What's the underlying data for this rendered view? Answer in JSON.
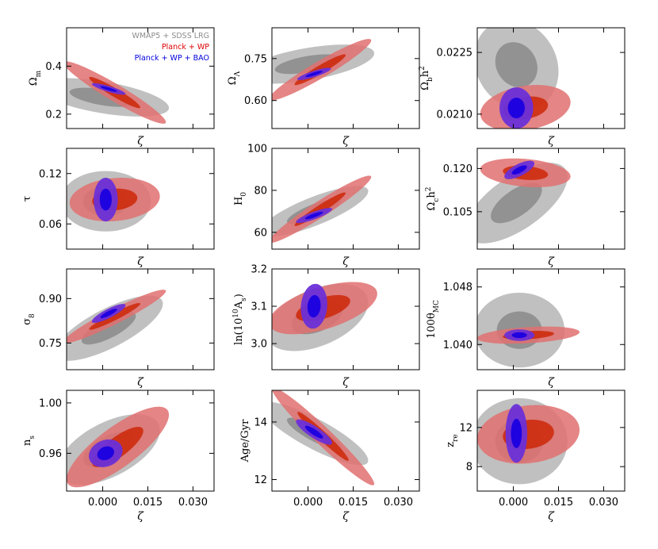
{
  "colors": {
    "wmap_outer": "#bdbdbd",
    "wmap_inner": "#8f8f8f",
    "planck_outer": "#e07070",
    "planck_inner": "#cc2200",
    "bao_outer": "#6a30d8",
    "bao_inner": "#1a00e0",
    "legend_wmap": "#8c8c8c",
    "legend_planck": "#dd0000",
    "legend_bao": "#0000dd"
  },
  "chart_data": {
    "type": "contour-grid",
    "legend": [
      {
        "label": "WMAP5 + SDSS LRG",
        "color": "#8c8c8c"
      },
      {
        "label": "Planck + WP",
        "color": "#dd0000"
      },
      {
        "label": "Planck + WP + BAO",
        "color": "#0000dd"
      }
    ],
    "legend_position": "top-right of first panel",
    "xlabel": "ζ",
    "xlim": [
      -0.012,
      0.037
    ],
    "xticks": [
      "0.000",
      "0.015",
      "0.030"
    ],
    "panels": [
      {
        "name": "omega-m",
        "ylabel_main": "Ω",
        "ylabel_sub": "m",
        "ylim": [
          0.14,
          0.56
        ],
        "yticks": [
          {
            "v": 0.2,
            "label": "0.2"
          },
          {
            "v": 0.4,
            "label": "0.4"
          }
        ],
        "show_xticks": false,
        "contours": {
          "wmap": {
            "cx": 0.0,
            "cy": 0.27,
            "sx": 0.011,
            "sy": 0.04,
            "r": -0.55
          },
          "planck": {
            "cx": 0.004,
            "cy": 0.29,
            "sx": 0.0085,
            "sy": 0.065,
            "r": -0.95
          },
          "bao": {
            "cx": 0.002,
            "cy": 0.305,
            "sx": 0.0028,
            "sy": 0.012,
            "r": -0.85
          }
        }
      },
      {
        "name": "omega-lambda",
        "ylabel_main": "Ω",
        "ylabel_sub": "Λ",
        "ylim": [
          0.5,
          0.86
        ],
        "yticks": [
          {
            "v": 0.6,
            "label": "0.60"
          },
          {
            "v": 0.75,
            "label": "0.75"
          }
        ],
        "show_xticks": false,
        "contours": {
          "wmap": {
            "cx": 0.0,
            "cy": 0.73,
            "sx": 0.011,
            "sy": 0.035,
            "r": 0.55
          },
          "planck": {
            "cx": 0.004,
            "cy": 0.71,
            "sx": 0.0085,
            "sy": 0.055,
            "r": 0.95
          },
          "bao": {
            "cx": 0.002,
            "cy": 0.695,
            "sx": 0.0028,
            "sy": 0.011,
            "r": 0.85
          }
        }
      },
      {
        "name": "omega-b-h2",
        "ylabel_main": "Ω",
        "ylabel_sub": "b",
        "ylabel_suffix": "h",
        "ylabel_sup": "2",
        "ylim": [
          0.02065,
          0.0231
        ],
        "yticks": [
          {
            "v": 0.021,
            "label": "0.0210"
          },
          {
            "v": 0.0225,
            "label": "0.0225"
          }
        ],
        "show_xticks": false,
        "contours": {
          "wmap": {
            "cx": 0.001,
            "cy": 0.0222,
            "sx": 0.007,
            "sy": 0.00055,
            "r": -0.15
          },
          "planck": {
            "cx": 0.004,
            "cy": 0.02115,
            "sx": 0.0075,
            "sy": 0.00028,
            "r": 0.25
          },
          "bao": {
            "cx": 0.001,
            "cy": 0.02115,
            "sx": 0.0028,
            "sy": 0.00025,
            "r": 0.0
          }
        }
      },
      {
        "name": "tau",
        "ylabel_main": "τ",
        "ylim": [
          0.03,
          0.15
        ],
        "yticks": [
          {
            "v": 0.06,
            "label": "0.06"
          },
          {
            "v": 0.12,
            "label": "0.12"
          }
        ],
        "show_xticks": false,
        "contours": {
          "wmap": {
            "cx": 0.001,
            "cy": 0.087,
            "sx": 0.0075,
            "sy": 0.018,
            "r": 0.0
          },
          "planck": {
            "cx": 0.004,
            "cy": 0.089,
            "sx": 0.0075,
            "sy": 0.013,
            "r": 0.15
          },
          "bao": {
            "cx": 0.001,
            "cy": 0.089,
            "sx": 0.002,
            "sy": 0.013,
            "r": 0.0
          }
        }
      },
      {
        "name": "h0",
        "ylabel_main": "H",
        "ylabel_sub": "0",
        "ylim": [
          52,
          100
        ],
        "yticks": [
          {
            "v": 60,
            "label": "60"
          },
          {
            "v": 80,
            "label": "80"
          },
          {
            "v": 100,
            "label": "100"
          }
        ],
        "show_xticks": false,
        "contours": {
          "wmap": {
            "cx": 0.002,
            "cy": 70,
            "sx": 0.009,
            "sy": 6,
            "r": 0.8
          },
          "planck": {
            "cx": 0.004,
            "cy": 71,
            "sx": 0.0085,
            "sy": 8,
            "r": 0.96
          },
          "bao": {
            "cx": 0.002,
            "cy": 68,
            "sx": 0.003,
            "sy": 1.8,
            "r": 0.85
          }
        }
      },
      {
        "name": "omega-c-h2",
        "ylabel_main": "Ω",
        "ylabel_sub": "c",
        "ylabel_suffix": "h",
        "ylabel_sup": "2",
        "ylim": [
          0.092,
          0.127
        ],
        "yticks": [
          {
            "v": 0.105,
            "label": "0.105"
          },
          {
            "v": 0.12,
            "label": "0.120"
          }
        ],
        "show_xticks": false,
        "contours": {
          "wmap": {
            "cx": 0.001,
            "cy": 0.108,
            "sx": 0.0085,
            "sy": 0.007,
            "r": 0.65
          },
          "planck": {
            "cx": 0.004,
            "cy": 0.1185,
            "sx": 0.0075,
            "sy": 0.0025,
            "r": -0.25
          },
          "bao": {
            "cx": 0.002,
            "cy": 0.1195,
            "sx": 0.0025,
            "sy": 0.0016,
            "r": 0.7
          }
        }
      },
      {
        "name": "sigma-8",
        "ylabel_main": "σ",
        "ylabel_sub": "8",
        "ylim": [
          0.66,
          1.0
        ],
        "yticks": [
          {
            "v": 0.75,
            "label": "0.75"
          },
          {
            "v": 0.9,
            "label": "0.90"
          }
        ],
        "show_xticks": false,
        "contours": {
          "wmap": {
            "cx": 0.002,
            "cy": 0.8,
            "sx": 0.009,
            "sy": 0.055,
            "r": 0.75
          },
          "planck": {
            "cx": 0.004,
            "cy": 0.84,
            "sx": 0.0085,
            "sy": 0.045,
            "r": 0.95
          },
          "bao": {
            "cx": 0.002,
            "cy": 0.85,
            "sx": 0.0028,
            "sy": 0.016,
            "r": 0.85
          }
        }
      },
      {
        "name": "ln-as",
        "ylabel_main": "ln(10",
        "ylabel_sup": "10",
        "ylabel_tail": "A",
        "ylabel_tailsub": "s",
        "ylabel_end": ")",
        "ylim": [
          2.93,
          3.2
        ],
        "yticks": [
          {
            "v": 3.0,
            "label": "3.0"
          },
          {
            "v": 3.1,
            "label": "3.1"
          },
          {
            "v": 3.2,
            "label": "3.2"
          }
        ],
        "show_xticks": false,
        "contours": {
          "wmap": {
            "cx": 0.003,
            "cy": 3.07,
            "sx": 0.0085,
            "sy": 0.045,
            "r": 0.45
          },
          "planck": {
            "cx": 0.005,
            "cy": 3.095,
            "sx": 0.009,
            "sy": 0.035,
            "r": 0.55
          },
          "bao": {
            "cx": 0.002,
            "cy": 3.1,
            "sx": 0.0022,
            "sy": 0.03,
            "r": 0.1
          }
        }
      },
      {
        "name": "theta-mc",
        "ylabel_main": "100θ",
        "ylabel_sub": "MC",
        "ylim": [
          1.0365,
          1.0505
        ],
        "yticks": [
          {
            "v": 1.04,
            "label": "1.040"
          },
          {
            "v": 1.048,
            "label": "1.048"
          }
        ],
        "show_xticks": false,
        "contours": {
          "wmap": {
            "cx": 0.002,
            "cy": 1.042,
            "sx": 0.0075,
            "sy": 0.0026,
            "r": 0.0
          },
          "planck": {
            "cx": 0.005,
            "cy": 1.0413,
            "sx": 0.0085,
            "sy": 0.0006,
            "r": 0.35
          },
          "bao": {
            "cx": 0.002,
            "cy": 1.0413,
            "sx": 0.0025,
            "sy": 0.0004,
            "r": 0.0
          }
        }
      },
      {
        "name": "n-s",
        "ylabel_main": "n",
        "ylabel_sub": "s",
        "ylim": [
          0.93,
          1.01
        ],
        "yticks": [
          {
            "v": 0.96,
            "label": "0.96"
          },
          {
            "v": 1.0,
            "label": "1.00"
          }
        ],
        "show_xticks": true,
        "contours": {
          "wmap": {
            "cx": 0.002,
            "cy": 0.963,
            "sx": 0.0085,
            "sy": 0.014,
            "r": 0.55
          },
          "planck": {
            "cx": 0.005,
            "cy": 0.965,
            "sx": 0.0085,
            "sy": 0.016,
            "r": 0.8
          },
          "bao": {
            "cx": 0.001,
            "cy": 0.96,
            "sx": 0.0028,
            "sy": 0.0055,
            "r": 0.2
          }
        }
      },
      {
        "name": "age",
        "ylabel_main": "Age/Gyr",
        "ylim": [
          11.6,
          15.1
        ],
        "yticks": [
          {
            "v": 12,
            "label": "12"
          },
          {
            "v": 14,
            "label": "14"
          }
        ],
        "show_xticks": true,
        "contours": {
          "wmap": {
            "cx": 0.002,
            "cy": 13.6,
            "sx": 0.009,
            "sy": 0.55,
            "r": -0.85
          },
          "planck": {
            "cx": 0.005,
            "cy": 13.5,
            "sx": 0.0085,
            "sy": 0.85,
            "r": -0.97
          },
          "bao": {
            "cx": 0.002,
            "cy": 13.65,
            "sx": 0.003,
            "sy": 0.22,
            "r": -0.85
          }
        }
      },
      {
        "name": "z-re",
        "ylabel_main": "z",
        "ylabel_sub": "re",
        "ylim": [
          5.5,
          15.8
        ],
        "yticks": [
          {
            "v": 8,
            "label": "8"
          },
          {
            "v": 12,
            "label": "12"
          }
        ],
        "show_xticks": true,
        "contours": {
          "wmap": {
            "cx": 0.002,
            "cy": 10.6,
            "sx": 0.008,
            "sy": 2.2,
            "r": 0.0
          },
          "planck": {
            "cx": 0.005,
            "cy": 11.3,
            "sx": 0.0085,
            "sy": 1.5,
            "r": 0.15
          },
          "bao": {
            "cx": 0.001,
            "cy": 11.4,
            "sx": 0.0018,
            "sy": 1.5,
            "r": 0.0
          }
        }
      }
    ]
  }
}
